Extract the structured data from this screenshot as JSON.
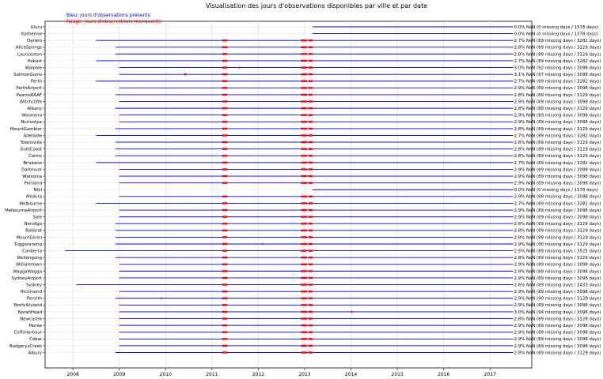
{
  "chart_data": {
    "type": "timeline",
    "title": "Visualisation des jours d'observations disponibles par ville et par date",
    "legend": [
      {
        "label": "Bleu: jours d'observations présents",
        "color": "#0000ff"
      },
      {
        "label": "Rouge: jours d'observations manquants",
        "color": "#ff0000"
      }
    ],
    "xlim": [
      2007.4,
      2017.9
    ],
    "x_ticks": [
      "2008",
      "2009",
      "2010",
      "2011",
      "2012",
      "2013",
      "2014",
      "2015",
      "2016",
      "2017"
    ],
    "grid": true,
    "end": 2017.5,
    "common_gaps": [
      [
        2011.22,
        2011.33
      ],
      [
        2012.92,
        2013.05
      ],
      [
        2013.08,
        2013.17
      ]
    ],
    "series": [
      {
        "name": "Uluru",
        "start": 2013.17,
        "gaps": [],
        "annotation": "0.0% NaN (0 missing days / 1578 days)"
      },
      {
        "name": "Katherine",
        "start": 2013.17,
        "gaps": [],
        "annotation": "0.0% NaN (0 missing days / 1578 days)"
      },
      {
        "name": "Darwin",
        "start": 2008.5,
        "gaps": "common",
        "annotation": "2.7% NaN (89 missing days / 3282 days)"
      },
      {
        "name": "AliceSprings",
        "start": 2008.92,
        "gaps": "common",
        "annotation": "2.8% NaN (89 missing days / 3129 days)"
      },
      {
        "name": "Launceston",
        "start": 2008.92,
        "gaps": "common",
        "annotation": "2.8% NaN (89 missing days / 3129 days)"
      },
      {
        "name": "Hobart",
        "start": 2008.5,
        "gaps": "common",
        "annotation": "2.7% NaN (89 missing days / 3282 days)"
      },
      {
        "name": "Walpole",
        "start": 2009.0,
        "gaps": "common",
        "extra_gaps": [
          [
            2011.58,
            2011.6
          ]
        ],
        "annotation": "3.0% NaN (92 missing days / 3098 days)"
      },
      {
        "name": "SalmonGums",
        "start": 2009.0,
        "gaps": "common",
        "extra_gaps": [
          [
            2010.4,
            2010.45
          ]
        ],
        "annotation": "3.1% NaN (97 missing days / 3098 days)"
      },
      {
        "name": "Perth",
        "start": 2008.5,
        "gaps": "common",
        "annotation": "2.7% NaN (89 missing days / 3282 days)"
      },
      {
        "name": "PerthAirport",
        "start": 2009.0,
        "gaps": "common",
        "annotation": "2.9% NaN (89 missing days / 3098 days)"
      },
      {
        "name": "PearceRAAF",
        "start": 2008.92,
        "gaps": "common",
        "annotation": "2.8% NaN (89 missing days / 3129 days)"
      },
      {
        "name": "Witchcliffe",
        "start": 2009.0,
        "gaps": "common",
        "annotation": "2.9% NaN (89 missing days / 3098 days)"
      },
      {
        "name": "Albany",
        "start": 2008.92,
        "gaps": "common",
        "annotation": "2.8% NaN (89 missing days / 3129 days)"
      },
      {
        "name": "Woomera",
        "start": 2009.0,
        "gaps": "common",
        "annotation": "2.9% NaN (89 missing days / 3098 days)"
      },
      {
        "name": "Nuriootpa",
        "start": 2009.0,
        "gaps": "common",
        "annotation": "2.9% NaN (89 missing days / 3098 days)"
      },
      {
        "name": "MountGambier",
        "start": 2008.92,
        "gaps": "common",
        "annotation": "2.8% NaN (89 missing days / 3129 days)"
      },
      {
        "name": "Adelaide",
        "start": 2008.5,
        "gaps": "common",
        "annotation": "2.7% NaN (89 missing days / 3282 days)"
      },
      {
        "name": "Townsville",
        "start": 2008.92,
        "gaps": "common",
        "annotation": "2.8% NaN (89 missing days / 3129 days)"
      },
      {
        "name": "GoldCoast",
        "start": 2008.92,
        "gaps": "common",
        "annotation": "2.8% NaN (89 missing days / 3129 days)"
      },
      {
        "name": "Cairns",
        "start": 2008.92,
        "gaps": "common",
        "annotation": "2.8% NaN (89 missing days / 3129 days)"
      },
      {
        "name": "Brisbane",
        "start": 2008.5,
        "gaps": "common",
        "annotation": "2.7% NaN (89 missing days / 3282 days)"
      },
      {
        "name": "Dartmoor",
        "start": 2009.0,
        "gaps": "common",
        "annotation": "2.9% NaN (89 missing days / 3098 days)"
      },
      {
        "name": "Watsonia",
        "start": 2009.0,
        "gaps": "common",
        "annotation": "2.9% NaN (89 missing days / 3098 days)"
      },
      {
        "name": "Portland",
        "start": 2009.0,
        "gaps": "common",
        "annotation": "2.9% NaN (89 missing days / 3098 days)"
      },
      {
        "name": "Nhil",
        "start": 2013.17,
        "gaps": [],
        "annotation": "0.0% NaN (0 missing days / 1578 days)"
      },
      {
        "name": "Mildura",
        "start": 2009.0,
        "gaps": "common",
        "annotation": "2.9% NaN (89 missing days / 3098 days)"
      },
      {
        "name": "Melbourne",
        "start": 2008.5,
        "gaps": "common",
        "annotation": "2.7% NaN (89 missing days / 3282 days)"
      },
      {
        "name": "MelbourneAirport",
        "start": 2009.0,
        "gaps": "common",
        "annotation": "2.9% NaN (89 missing days / 3098 days)"
      },
      {
        "name": "Sale",
        "start": 2009.0,
        "gaps": "common",
        "annotation": "2.9% NaN (89 missing days / 3098 days)"
      },
      {
        "name": "Bendigo",
        "start": 2008.92,
        "gaps": "common",
        "annotation": "2.8% NaN (89 missing days / 3129 days)"
      },
      {
        "name": "Ballarat",
        "start": 2008.92,
        "gaps": "common",
        "annotation": "2.8% NaN (89 missing days / 3129 days)"
      },
      {
        "name": "MountGinini",
        "start": 2008.92,
        "gaps": "common",
        "annotation": "2.8% NaN (89 missing days / 3129 days)"
      },
      {
        "name": "Tuggeranong",
        "start": 2008.92,
        "gaps": "common",
        "extra_gaps": [
          [
            2012.08,
            2012.1
          ]
        ],
        "annotation": "2.9% NaN (90 missing days / 3129 days)"
      },
      {
        "name": "Canberra",
        "start": 2007.83,
        "gaps": "common",
        "annotation": "2.5% NaN (89 missing days / 3525 days)"
      },
      {
        "name": "Wollongong",
        "start": 2008.92,
        "gaps": "common",
        "annotation": "2.8% NaN (89 missing days / 3129 days)"
      },
      {
        "name": "Williamtown",
        "start": 2009.0,
        "gaps": "common",
        "annotation": "2.9% NaN (89 missing days / 3098 days)"
      },
      {
        "name": "WaggaWagga",
        "start": 2009.0,
        "gaps": "common",
        "annotation": "2.9% NaN (89 missing days / 3098 days)"
      },
      {
        "name": "SydneyAirport",
        "start": 2009.0,
        "gaps": "common",
        "annotation": "2.9% NaN (89 missing days / 3098 days)"
      },
      {
        "name": "Sydney",
        "start": 2008.08,
        "gaps": "common",
        "annotation": "2.6% NaN (89 missing days / 3433 days)"
      },
      {
        "name": "Richmond",
        "start": 2009.0,
        "gaps": "common",
        "annotation": "2.9% NaN (89 missing days / 3098 days)"
      },
      {
        "name": "Penrith",
        "start": 2008.92,
        "gaps": "common",
        "extra_gaps": [
          [
            2009.9,
            2009.92
          ]
        ],
        "annotation": "2.9% NaN (90 missing days / 3129 days)"
      },
      {
        "name": "NorfolkIsland",
        "start": 2009.0,
        "gaps": "common",
        "annotation": "2.9% NaN (89 missing days / 3098 days)"
      },
      {
        "name": "NorahHead",
        "start": 2009.0,
        "gaps": "common",
        "extra_gaps": [
          [
            2014.0,
            2014.03
          ]
        ],
        "annotation": "3.0% NaN (94 missing days / 3098 days)"
      },
      {
        "name": "Newcastle",
        "start": 2009.0,
        "gaps": "common",
        "annotation": "2.8% NaN (89 missing days / 3128 days)"
      },
      {
        "name": "Moree",
        "start": 2009.0,
        "gaps": "common",
        "annotation": "2.9% NaN (89 missing days / 3098 days)"
      },
      {
        "name": "CoffsHarbour",
        "start": 2009.0,
        "gaps": "common",
        "annotation": "2.9% NaN (89 missing days / 3098 days)"
      },
      {
        "name": "Cobar",
        "start": 2009.0,
        "gaps": "common",
        "annotation": "2.9% NaN (89 missing days / 3098 days)"
      },
      {
        "name": "BadgerysCreek",
        "start": 2009.0,
        "gaps": "common",
        "annotation": "2.9% NaN (89 missing days / 3098 days)"
      },
      {
        "name": "Albury",
        "start": 2008.92,
        "gaps": "common",
        "annotation": "2.8% NaN (89 missing days / 3129 days)"
      }
    ]
  }
}
